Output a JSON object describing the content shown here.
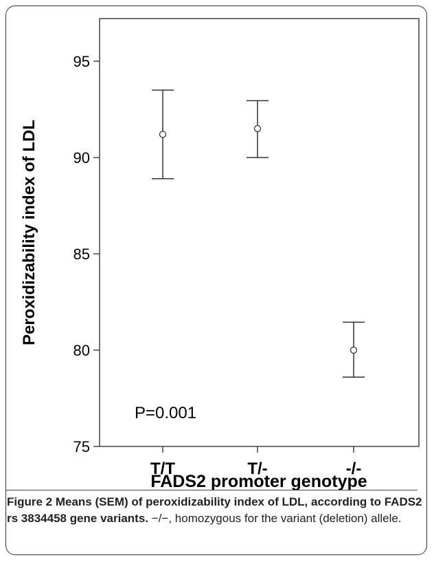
{
  "chart_data": {
    "type": "scatter",
    "subtype": "mean-with-error-bars",
    "categories": [
      "T/T",
      "T/-",
      "-/-"
    ],
    "means": [
      91.2,
      91.5,
      80.0
    ],
    "error_low": [
      88.9,
      90.0,
      78.6
    ],
    "error_high": [
      93.5,
      92.95,
      81.45
    ],
    "ylim": [
      75,
      97.1
    ],
    "yticks": [
      "75",
      "80",
      "85",
      "90",
      "95"
    ],
    "ylabel": "Peroxidizability index of LDL",
    "xlabel": "FADS2 promoter genotype",
    "annotation": "P=0.001"
  },
  "caption": {
    "bold": "Figure 2 Means (SEM) of peroxidizability index of LDL, according to FADS2 rs 3834458 gene variants.",
    "normal": " −/−, homozygous for the variant (deletion) allele."
  }
}
